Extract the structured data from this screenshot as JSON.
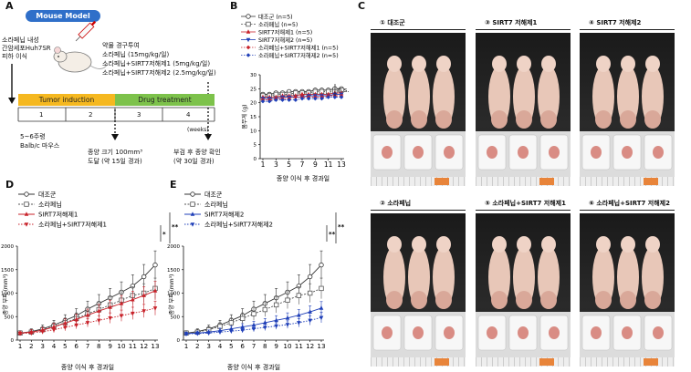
{
  "panelA": {
    "letter": "A",
    "model_title": "Mouse Model",
    "injection_lines": [
      "소라페닙 내성",
      "간암세포Huh7SR",
      "피하 이식"
    ],
    "drug_lines": [
      "약물 경구투여",
      "소라페닙 (15mg/kg/일)",
      "소라페닙+SIRT7저해제1 (5mg/kg/일)",
      "소라페닙+SIRT7저해제2 (2.5mg/kg/일)"
    ],
    "phase_tumor": "Tumor induction",
    "phase_drug": "Drug treatment",
    "weeks": [
      "1",
      "2",
      "3",
      "4"
    ],
    "weeks_unit": "(weeks)",
    "mouse_info": [
      "5~6주령",
      "Balb/c 마우스"
    ],
    "tumor_size_note": [
      "종양 크기 100mm³",
      "도달 (약 15일 경과)"
    ],
    "autopsy_note": [
      "부검 후 종양 확인",
      "(약 30일 경과)"
    ]
  },
  "panelB": {
    "letter": "B",
    "legend": [
      "대조군 (n=5)",
      "소라페닙 (n=5)",
      "SIRT7저해제1 (n=5)",
      "SIRT7저해제2 (n=5)",
      "소라페닙+SIRT7저해제1 (n=5)",
      "소라페닙+SIRT7저해제2 (n=5)"
    ],
    "ylabel": "몸무게 (g)",
    "xlabel": "종양 이식 후 경과일",
    "significance": "n.s."
  },
  "panelC": {
    "letter": "C",
    "groups": [
      "① 대조군",
      "③ SIRT7 저해제1",
      "④ SIRT7 저해제2",
      "② 소라페닙",
      "⑤ 소라페닙+SIRT7 저해제1",
      "⑥ 소라페닙+SIRT7 저해제2"
    ]
  },
  "panelD": {
    "letter": "D",
    "legend": [
      "대조군",
      "소라페닙",
      "SIRT7저해제1",
      "소라페닙+SIRT7저해제1"
    ],
    "ylabel": "종양 부피 (mm³)",
    "xlabel": "종양 이식 후 경과일",
    "sig1": "*",
    "sig2": "**"
  },
  "panelE": {
    "letter": "E",
    "legend": [
      "대조군",
      "소라페닙",
      "SIRT7저해제2",
      "소라페닙+SIRT7저해제2"
    ],
    "ylabel": "종양 부피 (mm³)",
    "xlabel": "종양 이식 후 경과일",
    "sig1": "**",
    "sig2": "**"
  },
  "colors": {
    "accent": "#2f6fc9",
    "tumor_phase": "#f5b820",
    "drug_phase": "#7dc24b",
    "red": "#c8222a",
    "blue": "#1f3fb8"
  },
  "chart_data": [
    {
      "type": "line",
      "panel": "B",
      "x": [
        1,
        2,
        3,
        4,
        5,
        6,
        7,
        8,
        9,
        10,
        11,
        12,
        13
      ],
      "ylim": [
        0,
        30
      ],
      "yticks": [
        0,
        5,
        10,
        15,
        20,
        25,
        30
      ],
      "xticks": [
        1,
        3,
        5,
        7,
        9,
        11,
        13
      ],
      "series": [
        {
          "name": "대조군",
          "values": [
            23,
            23,
            23.5,
            23.5,
            24,
            24,
            24,
            24,
            24.5,
            24.5,
            24.5,
            25,
            25
          ]
        },
        {
          "name": "소라페닙",
          "values": [
            22.5,
            22.5,
            23,
            23,
            23,
            23.5,
            23.5,
            23.5,
            24,
            24,
            24,
            24,
            24.5
          ]
        },
        {
          "name": "SIRT7저해제1",
          "values": [
            22,
            22,
            22,
            22.5,
            22.5,
            22.5,
            23,
            23,
            23,
            23,
            23,
            23.5,
            23.5
          ]
        },
        {
          "name": "SIRT7저해제2",
          "values": [
            21.5,
            21.5,
            21.5,
            22,
            22,
            22,
            22,
            22.5,
            22.5,
            22.5,
            22.5,
            23,
            23
          ]
        },
        {
          "name": "소라페닙+SIRT7저해제1",
          "values": [
            21,
            21,
            21.5,
            21.5,
            21.5,
            22,
            22,
            22,
            22,
            22,
            22.5,
            22.5,
            22.5
          ]
        },
        {
          "name": "소라페닙+SIRT7저해제2",
          "values": [
            20.5,
            20.5,
            21,
            21,
            21,
            21,
            21.5,
            21.5,
            21.5,
            21.5,
            22,
            22,
            22
          ]
        }
      ]
    },
    {
      "type": "line",
      "panel": "D",
      "x": [
        1,
        2,
        3,
        4,
        5,
        6,
        7,
        8,
        9,
        10,
        11,
        12,
        13
      ],
      "ylim": [
        0,
        2000
      ],
      "yticks": [
        0,
        500,
        1000,
        1500,
        2000
      ],
      "xticks": [
        1,
        2,
        3,
        4,
        5,
        6,
        7,
        8,
        9,
        10,
        11,
        12,
        13
      ],
      "series": [
        {
          "name": "대조군",
          "values": [
            150,
            180,
            240,
            320,
            420,
            520,
            660,
            780,
            900,
            1020,
            1150,
            1350,
            1600
          ],
          "err": [
            50,
            60,
            80,
            100,
            120,
            150,
            170,
            190,
            200,
            220,
            240,
            260,
            300
          ]
        },
        {
          "name": "소라페닙",
          "values": [
            150,
            170,
            220,
            290,
            370,
            460,
            560,
            650,
            750,
            850,
            950,
            1000,
            1100
          ],
          "err": [
            40,
            50,
            60,
            80,
            100,
            120,
            140,
            150,
            170,
            180,
            190,
            200,
            220
          ]
        },
        {
          "name": "SIRT7저해제1",
          "values": [
            150,
            170,
            210,
            280,
            360,
            440,
            530,
            620,
            700,
            780,
            860,
            950,
            1050
          ],
          "err": [
            40,
            50,
            60,
            80,
            90,
            110,
            130,
            140,
            150,
            170,
            180,
            190,
            200
          ]
        },
        {
          "name": "소라페닙+SIRT7저해제1",
          "values": [
            140,
            150,
            180,
            220,
            270,
            320,
            370,
            420,
            470,
            520,
            570,
            620,
            680
          ],
          "err": [
            30,
            40,
            50,
            60,
            70,
            80,
            90,
            100,
            110,
            120,
            130,
            140,
            150
          ]
        }
      ]
    },
    {
      "type": "line",
      "panel": "E",
      "x": [
        1,
        2,
        3,
        4,
        5,
        6,
        7,
        8,
        9,
        10,
        11,
        12,
        13
      ],
      "ylim": [
        0,
        2000
      ],
      "yticks": [
        0,
        500,
        1000,
        1500,
        2000
      ],
      "xticks": [
        1,
        2,
        3,
        4,
        5,
        6,
        7,
        8,
        9,
        10,
        11,
        12,
        13
      ],
      "series": [
        {
          "name": "대조군",
          "values": [
            150,
            180,
            240,
            320,
            420,
            520,
            660,
            780,
            900,
            1020,
            1150,
            1350,
            1600
          ],
          "err": [
            50,
            60,
            80,
            100,
            120,
            150,
            170,
            190,
            200,
            220,
            240,
            260,
            300
          ]
        },
        {
          "name": "소라페닙",
          "values": [
            150,
            170,
            220,
            290,
            370,
            460,
            560,
            650,
            750,
            850,
            950,
            1000,
            1100
          ],
          "err": [
            40,
            50,
            60,
            80,
            100,
            120,
            140,
            150,
            170,
            180,
            190,
            200,
            220
          ]
        },
        {
          "name": "SIRT7저해제2",
          "values": [
            140,
            150,
            170,
            200,
            240,
            280,
            320,
            370,
            420,
            470,
            530,
            600,
            680
          ],
          "err": [
            30,
            40,
            45,
            55,
            60,
            70,
            80,
            90,
            100,
            110,
            120,
            130,
            140
          ]
        },
        {
          "name": "소라페닙+SIRT7저해제2",
          "values": [
            130,
            140,
            150,
            170,
            190,
            210,
            240,
            270,
            300,
            330,
            370,
            420,
            480
          ],
          "err": [
            25,
            30,
            35,
            40,
            45,
            50,
            60,
            65,
            70,
            80,
            90,
            100,
            110
          ]
        }
      ]
    }
  ]
}
